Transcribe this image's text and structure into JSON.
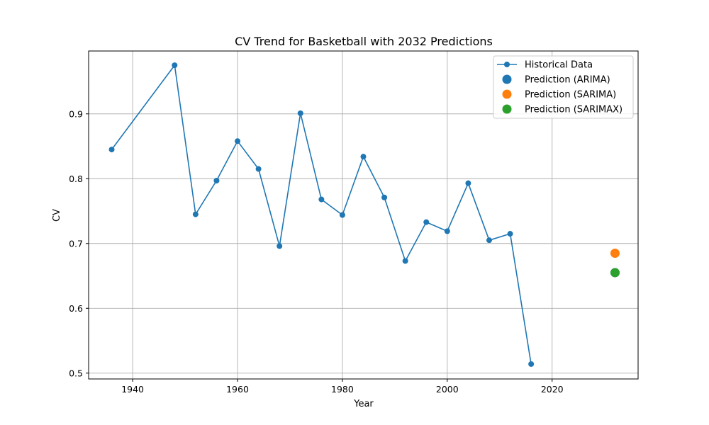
{
  "chart_data": {
    "type": "line",
    "title": "CV Trend for Basketball with 2032 Predictions",
    "xlabel": "Year",
    "ylabel": "CV",
    "xlim": [
      1931.6,
      2036.4
    ],
    "ylim": [
      0.491,
      0.997
    ],
    "x_ticks": [
      1940,
      1960,
      1980,
      2000,
      2020
    ],
    "y_ticks": [
      0.5,
      0.6,
      0.7,
      0.8,
      0.9
    ],
    "grid": true,
    "legend_position": "top-right",
    "series": [
      {
        "name": "Historical Data",
        "kind": "line-with-markers",
        "color": "#1f77b4",
        "x": [
          1936,
          1948,
          1952,
          1956,
          1960,
          1964,
          1968,
          1972,
          1976,
          1980,
          1984,
          1988,
          1992,
          1996,
          2000,
          2004,
          2008,
          2012,
          2016
        ],
        "y": [
          0.845,
          0.975,
          0.745,
          0.797,
          0.858,
          0.815,
          0.696,
          0.901,
          0.768,
          0.744,
          0.834,
          0.771,
          0.673,
          0.733,
          0.719,
          0.793,
          0.705,
          0.715,
          0.514
        ]
      },
      {
        "name": "Prediction (ARIMA)",
        "kind": "point",
        "color": "#1f77b4",
        "x": [
          2032
        ],
        "y": [
          0.655
        ]
      },
      {
        "name": "Prediction (SARIMA)",
        "kind": "point",
        "color": "#ff7f0e",
        "x": [
          2032
        ],
        "y": [
          0.685
        ]
      },
      {
        "name": "Prediction (SARIMAX)",
        "kind": "point",
        "color": "#2ca02c",
        "x": [
          2032
        ],
        "y": [
          0.655
        ]
      }
    ]
  }
}
